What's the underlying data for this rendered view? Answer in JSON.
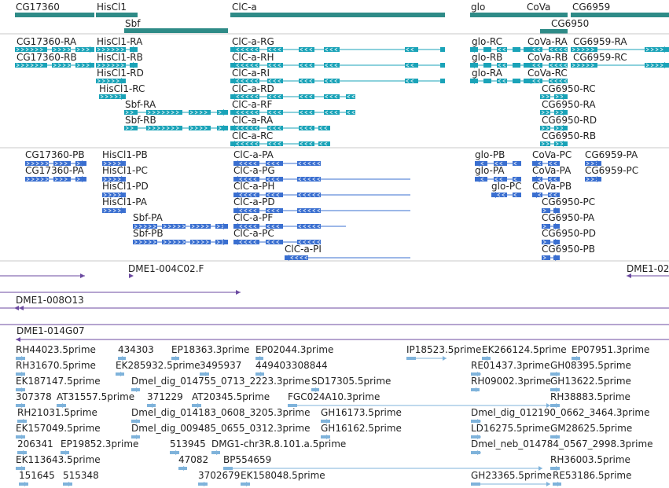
{
  "colors": {
    "gene": "#2e8b87",
    "transcript": "#1aa3b8",
    "protein": "#3a6fd0",
    "bac": "#6b4aa0",
    "est": "#7fb3db",
    "divider": "#c8c8c8",
    "text": "#222222"
  },
  "tracks": {
    "genes": [
      {
        "label": "CG17360",
        "strand": "+"
      },
      {
        "label": "HisCl1",
        "strand": "+"
      },
      {
        "label": "Sbf",
        "strand": "+"
      },
      {
        "label": "ClC-a",
        "strand": "-"
      },
      {
        "label": "glo",
        "strand": "-"
      },
      {
        "label": "CoVa",
        "strand": "-"
      },
      {
        "label": "CG6959",
        "strand": "+"
      },
      {
        "label": "CG6950",
        "strand": "+"
      }
    ],
    "transcripts": [
      {
        "label": "CG17360-RA"
      },
      {
        "label": "CG17360-RB"
      },
      {
        "label": "HisCl1-RA"
      },
      {
        "label": "HisCl1-RB"
      },
      {
        "label": "HisCl1-RD"
      },
      {
        "label": "HisCl1-RC"
      },
      {
        "label": "Sbf-RA"
      },
      {
        "label": "Sbf-RB"
      },
      {
        "label": "ClC-a-RG"
      },
      {
        "label": "ClC-a-RH"
      },
      {
        "label": "ClC-a-RI"
      },
      {
        "label": "ClC-a-RD"
      },
      {
        "label": "ClC-a-RF"
      },
      {
        "label": "ClC-a-RA"
      },
      {
        "label": "ClC-a-RC"
      },
      {
        "label": "glo-RC"
      },
      {
        "label": "glo-RB"
      },
      {
        "label": "glo-RA"
      },
      {
        "label": "CoVa-RA"
      },
      {
        "label": "CoVa-RB"
      },
      {
        "label": "CoVa-RC"
      },
      {
        "label": "CG6959-RA"
      },
      {
        "label": "CG6959-RC"
      },
      {
        "label": "CG6950-RC"
      },
      {
        "label": "CG6950-RA"
      },
      {
        "label": "CG6950-RD"
      },
      {
        "label": "CG6950-RB"
      }
    ],
    "proteins": [
      {
        "label": "CG17360-PB"
      },
      {
        "label": "CG17360-PA"
      },
      {
        "label": "HisCl1-PB"
      },
      {
        "label": "HisCl1-PC"
      },
      {
        "label": "HisCl1-PD"
      },
      {
        "label": "HisCl1-PA"
      },
      {
        "label": "Sbf-PA"
      },
      {
        "label": "Sbf-PB"
      },
      {
        "label": "ClC-a-PA"
      },
      {
        "label": "ClC-a-PG"
      },
      {
        "label": "ClC-a-PH"
      },
      {
        "label": "ClC-a-PD"
      },
      {
        "label": "ClC-a-PF"
      },
      {
        "label": "ClC-a-PC"
      },
      {
        "label": "ClC-a-PI"
      },
      {
        "label": "glo-PB"
      },
      {
        "label": "glo-PA"
      },
      {
        "label": "glo-PC"
      },
      {
        "label": "CoVa-PC"
      },
      {
        "label": "CoVa-PA"
      },
      {
        "label": "CoVa-PB"
      },
      {
        "label": "CG6959-PA"
      },
      {
        "label": "CG6959-PC"
      },
      {
        "label": "CG6950-PC"
      },
      {
        "label": "CG6950-PA"
      },
      {
        "label": "CG6950-PD"
      },
      {
        "label": "CG6950-PB"
      }
    ],
    "bac_clones": [
      {
        "label": "DME1-004C02.F"
      },
      {
        "label": "DME1-02"
      },
      {
        "label": "DME1-008O13"
      },
      {
        "label": "DME1-014G07"
      }
    ],
    "ests": [
      {
        "label": "RH44023.5prime"
      },
      {
        "label": "434303"
      },
      {
        "label": "EP18363.3prime"
      },
      {
        "label": "EP02044.3prime"
      },
      {
        "label": "IP18523.5prime"
      },
      {
        "label": "EK266124.5prime"
      },
      {
        "label": "EP07951.3prime"
      },
      {
        "label": "RH31670.5prime"
      },
      {
        "label": "EK285932.5prime"
      },
      {
        "label": "3495937"
      },
      {
        "label": "449403308844"
      },
      {
        "label": "RE01437.3prime"
      },
      {
        "label": "GH08395.5prime"
      },
      {
        "label": "EK187147.5prime"
      },
      {
        "label": "Dmel_dig_014755_0713_2223.3prime"
      },
      {
        "label": "SD17305.5prime"
      },
      {
        "label": "RH09002.3prime"
      },
      {
        "label": "GH13622.5prime"
      },
      {
        "label": "307378"
      },
      {
        "label": "AT31557.5prime"
      },
      {
        "label": "371229"
      },
      {
        "label": "AT20345.5prime"
      },
      {
        "label": "FGC024A10.3prime"
      },
      {
        "label": "RH38883.5prime"
      },
      {
        "label": "RH21031.5prime"
      },
      {
        "label": "Dmel_dig_014183_0608_3205.3prime"
      },
      {
        "label": "GH16173.5prime"
      },
      {
        "label": "Dmel_dig_012190_0662_3464.3prime"
      },
      {
        "label": "EK157049.5prime"
      },
      {
        "label": "Dmel_dig_009485_0655_0312.3prime"
      },
      {
        "label": "GH16162.5prime"
      },
      {
        "label": "LD16275.5prime"
      },
      {
        "label": "GM28625.5prime"
      },
      {
        "label": "206341"
      },
      {
        "label": "EP19852.3prime"
      },
      {
        "label": "513945"
      },
      {
        "label": "DMG1-chr3R.8.101.a.5prime"
      },
      {
        "label": "Dmel_neb_014784_0567_2998.3prime"
      },
      {
        "label": "EK113643.5prime"
      },
      {
        "label": "47082"
      },
      {
        "label": "BP554659"
      },
      {
        "label": "RH36003.5prime"
      },
      {
        "label": "151645"
      },
      {
        "label": "515348"
      },
      {
        "label": "3702679"
      },
      {
        "label": "EK158048.5prime"
      },
      {
        "label": "GH23365.5prime"
      },
      {
        "label": "RE53186.5prime"
      }
    ]
  }
}
